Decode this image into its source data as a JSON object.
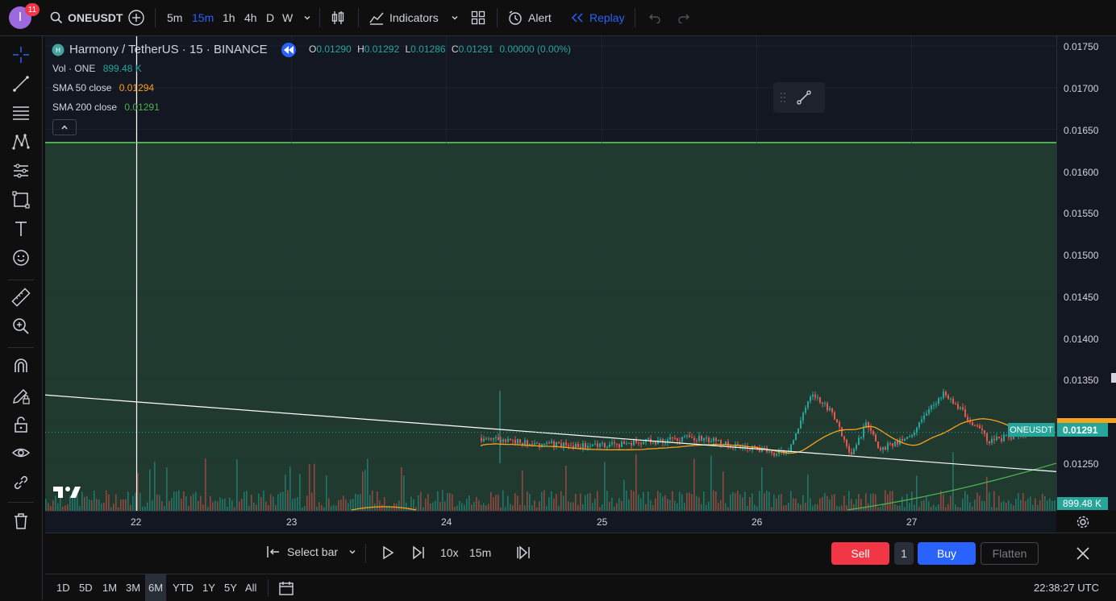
{
  "topbar": {
    "avatar_letter": "I",
    "notification_count": "11",
    "symbol": "ONEUSDT",
    "intervals": [
      "5m",
      "15m",
      "1h",
      "4h",
      "D",
      "W"
    ],
    "active_interval": "15m",
    "indicators_label": "Indicators",
    "alert_label": "Alert",
    "replay_label": "Replay"
  },
  "legend": {
    "title": "Harmony / TetherUS · 15 · BINANCE",
    "ohlc": {
      "o_label": "O",
      "o": "0.01290",
      "h_label": "H",
      "h": "0.01292",
      "l_label": "L",
      "l": "0.01286",
      "c_label": "C",
      "c": "0.01291",
      "change": "0.00000 (0.00%)"
    },
    "vol_label": "Vol · ONE",
    "vol_value": "899.48 K",
    "sma50_label": "SMA 50 close",
    "sma50_value": "0.01294",
    "sma200_label": "SMA 200 close",
    "sma200_value": "0.01291"
  },
  "price_axis": {
    "labels": [
      "0.01750",
      "0.01700",
      "0.01650",
      "0.01600",
      "0.01550",
      "0.01500",
      "0.01450",
      "0.01400",
      "0.01350",
      "0.01250"
    ],
    "current_symbol_tag": "ONEUSDT",
    "current_price": "0.01291",
    "volume_tag": "899.48 K"
  },
  "time_axis": {
    "labels": [
      "22",
      "23",
      "24",
      "25",
      "26",
      "27"
    ]
  },
  "replay": {
    "select_bar_label": "Select bar",
    "speed": "10x",
    "interval": "15m",
    "sell_label": "Sell",
    "quantity": "1",
    "buy_label": "Buy",
    "flatten_label": "Flatten"
  },
  "bottom": {
    "ranges": [
      "1D",
      "5D",
      "1M",
      "3M",
      "6M",
      "YTD",
      "1Y",
      "5Y",
      "All"
    ],
    "active_range": "6M",
    "clock": "22:38:27 UTC"
  },
  "colors": {
    "up": "#26a69a",
    "down": "#ef5350",
    "sma50": "#f7a21b",
    "sma200": "#4caf50",
    "accent": "#2962ff",
    "sell": "#f23645",
    "buy": "#2962ff",
    "zone": "#203a30"
  },
  "chart_data": {
    "type": "candlestick",
    "symbol": "ONEUSDT",
    "interval": "15m",
    "x_labels": [
      "22",
      "23",
      "24",
      "25",
      "26",
      "27"
    ],
    "y_range": [
      0.0122,
      0.01755
    ],
    "zone_top": 0.01635,
    "trendline": {
      "from": [
        0,
        0.01336
      ],
      "to": [
        1,
        0.01244
      ]
    },
    "series": [
      {
        "name": "price",
        "points": [
          [
            "24",
            0.0122
          ],
          [
            "24",
            0.0129
          ],
          [
            "24.4",
            0.0128
          ],
          [
            "24.8",
            0.01275
          ],
          [
            "25",
            0.01275
          ],
          [
            "25.3",
            0.0128
          ],
          [
            "25.6",
            0.01285
          ],
          [
            "26",
            0.0127
          ],
          [
            "26.2",
            0.01265
          ],
          [
            "26.35",
            0.0134
          ],
          [
            "26.5",
            0.0131
          ],
          [
            "26.6",
            0.0126
          ],
          [
            "26.7",
            0.013
          ],
          [
            "26.8",
            0.0127
          ],
          [
            "27",
            0.0129
          ],
          [
            "27.2",
            0.0134
          ],
          [
            "27.4",
            0.013
          ],
          [
            "27.5",
            0.0128
          ],
          [
            "27.6",
            0.01285
          ],
          [
            "27.7",
            0.0129
          ]
        ]
      },
      {
        "name": "SMA 50 close",
        "last": 0.01294
      },
      {
        "name": "SMA 200 close",
        "last": 0.01291
      }
    ]
  }
}
